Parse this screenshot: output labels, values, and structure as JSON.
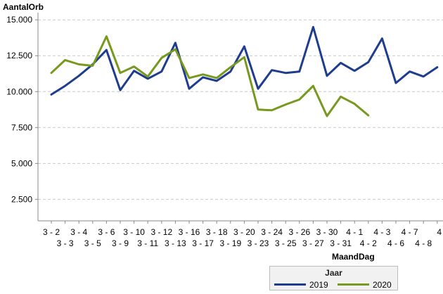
{
  "chart_data": {
    "type": "line",
    "title": "",
    "xlabel": "MaandDag",
    "ylabel": "AantalOrb",
    "ylim": [
      1000,
      15500
    ],
    "yticks": [
      2500,
      5000,
      7500,
      10000,
      12500,
      15000
    ],
    "ytick_labels": [
      "2.500",
      "5.000",
      "7.500",
      "10.000",
      "12.500",
      "15.000"
    ],
    "grid": true,
    "legend_position": "bottom-right",
    "legend_title": "Jaar",
    "categories": [
      "3 - 2",
      "3 - 3",
      "3 - 4",
      "3 - 5",
      "3 - 6",
      "3 - 9",
      "3 - 10",
      "3 - 11",
      "3 - 12",
      "3 - 13",
      "3 - 16",
      "3 - 17",
      "3 - 18",
      "3 - 19",
      "3 - 20",
      "3 - 23",
      "3 - 24",
      "3 - 25",
      "3 - 26",
      "3 - 27",
      "3 - 30",
      "3 - 31",
      "4 - 1",
      "4 - 2",
      "4 - 3",
      "4 - 6",
      "4 - 7",
      "4 - 8",
      "4"
    ],
    "series": [
      {
        "name": "2019",
        "color": "#1f3d8f",
        "values": [
          9800,
          10400,
          11100,
          11900,
          12900,
          10100,
          11450,
          10900,
          11400,
          13400,
          10200,
          11000,
          10750,
          11400,
          13150,
          10200,
          11500,
          11300,
          11400,
          14500,
          11100,
          12000,
          11450,
          12050,
          13700,
          10600,
          11400,
          11050,
          11700
        ]
      },
      {
        "name": "2020",
        "color": "#76991e",
        "values": [
          11300,
          12200,
          11900,
          11800,
          13850,
          11300,
          11750,
          11050,
          12350,
          12950,
          10950,
          11200,
          10950,
          11700,
          12400,
          8750,
          8700,
          9100,
          9450,
          10400,
          8300,
          9650,
          9150,
          8350,
          null,
          null,
          null,
          null,
          null
        ]
      }
    ]
  }
}
